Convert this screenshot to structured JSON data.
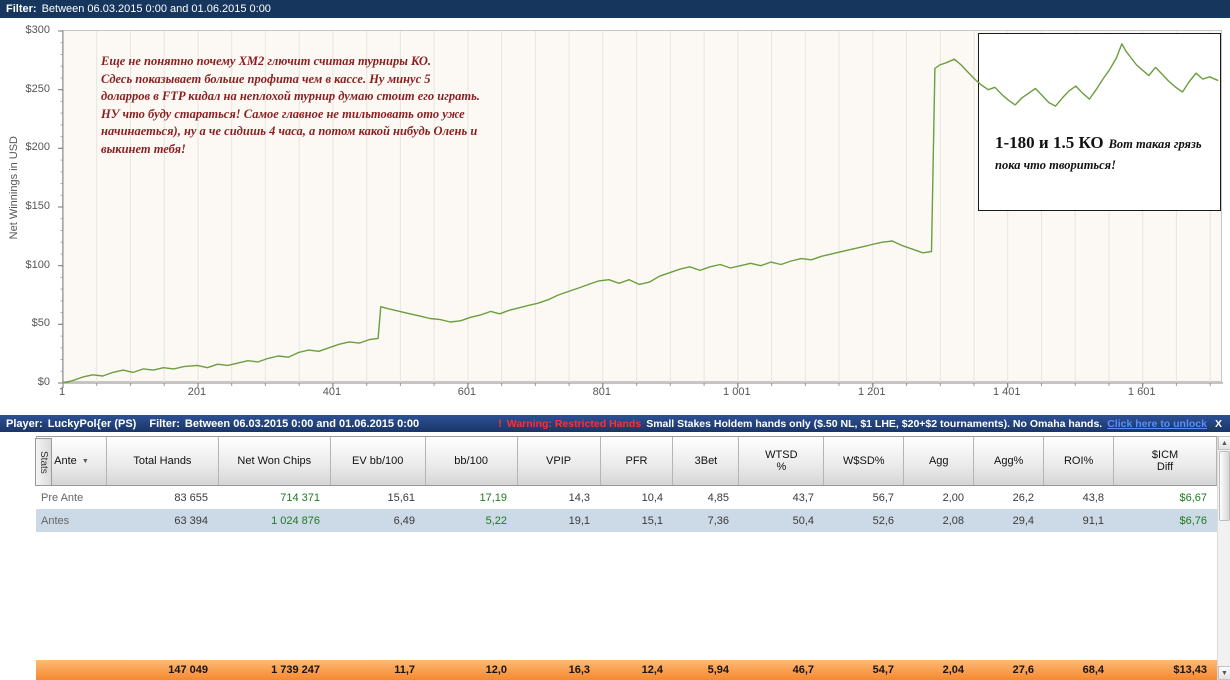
{
  "filter_bar": {
    "label": "Filter:",
    "value": "Between 06.03.2015 0:00 and 01.06.2015 0:00"
  },
  "chart_data": {
    "type": "line",
    "title": "",
    "xlabel": "",
    "ylabel": "Net Winnings in USD",
    "xlim": [
      1,
      1720
    ],
    "ylim": [
      0,
      300
    ],
    "x_tick_values": [
      1,
      201,
      401,
      601,
      801,
      1001,
      1201,
      1401,
      1601
    ],
    "x_tick_labels": [
      "1",
      "201",
      "401",
      "601",
      "801",
      "1 001",
      "1 201",
      "1 401",
      "1 601"
    ],
    "y_tick_values": [
      0,
      50,
      100,
      150,
      200,
      250,
      300
    ],
    "y_tick_labels": [
      "$0",
      "$50",
      "$100",
      "$150",
      "$200",
      "$250",
      "$300"
    ],
    "grid": "vertical",
    "legend": "none",
    "series": [
      {
        "name": "Net Winnings in USD",
        "color": "#6b9e3e",
        "points": [
          [
            1,
            0
          ],
          [
            15,
            2
          ],
          [
            30,
            5
          ],
          [
            45,
            7
          ],
          [
            60,
            6
          ],
          [
            75,
            9
          ],
          [
            90,
            11
          ],
          [
            105,
            9
          ],
          [
            120,
            12
          ],
          [
            135,
            11
          ],
          [
            150,
            13
          ],
          [
            165,
            12
          ],
          [
            180,
            14
          ],
          [
            200,
            15
          ],
          [
            215,
            13
          ],
          [
            230,
            16
          ],
          [
            245,
            15
          ],
          [
            260,
            17
          ],
          [
            275,
            19
          ],
          [
            290,
            18
          ],
          [
            305,
            21
          ],
          [
            320,
            23
          ],
          [
            335,
            22
          ],
          [
            350,
            26
          ],
          [
            365,
            28
          ],
          [
            380,
            27
          ],
          [
            395,
            30
          ],
          [
            410,
            33
          ],
          [
            425,
            35
          ],
          [
            440,
            34
          ],
          [
            455,
            37
          ],
          [
            468,
            38
          ],
          [
            472,
            65
          ],
          [
            485,
            63
          ],
          [
            500,
            61
          ],
          [
            515,
            59
          ],
          [
            530,
            57
          ],
          [
            545,
            55
          ],
          [
            560,
            54
          ],
          [
            575,
            52
          ],
          [
            590,
            53
          ],
          [
            605,
            56
          ],
          [
            620,
            58
          ],
          [
            635,
            61
          ],
          [
            648,
            59
          ],
          [
            662,
            62
          ],
          [
            676,
            64
          ],
          [
            690,
            66
          ],
          [
            705,
            68
          ],
          [
            720,
            71
          ],
          [
            735,
            75
          ],
          [
            750,
            78
          ],
          [
            765,
            81
          ],
          [
            780,
            84
          ],
          [
            795,
            87
          ],
          [
            810,
            88
          ],
          [
            825,
            85
          ],
          [
            840,
            88
          ],
          [
            855,
            84
          ],
          [
            870,
            86
          ],
          [
            885,
            91
          ],
          [
            900,
            94
          ],
          [
            915,
            97
          ],
          [
            930,
            99
          ],
          [
            945,
            96
          ],
          [
            960,
            99
          ],
          [
            975,
            101
          ],
          [
            990,
            98
          ],
          [
            1005,
            100
          ],
          [
            1020,
            102
          ],
          [
            1035,
            100
          ],
          [
            1050,
            103
          ],
          [
            1065,
            101
          ],
          [
            1080,
            104
          ],
          [
            1095,
            106
          ],
          [
            1110,
            105
          ],
          [
            1125,
            108
          ],
          [
            1140,
            110
          ],
          [
            1155,
            112
          ],
          [
            1170,
            114
          ],
          [
            1185,
            116
          ],
          [
            1200,
            118
          ],
          [
            1215,
            120
          ],
          [
            1230,
            121
          ],
          [
            1245,
            117
          ],
          [
            1260,
            114
          ],
          [
            1275,
            111
          ],
          [
            1288,
            112
          ],
          [
            1293,
            268
          ],
          [
            1300,
            271
          ],
          [
            1310,
            273
          ],
          [
            1322,
            276
          ],
          [
            1332,
            271
          ],
          [
            1342,
            265
          ],
          [
            1352,
            259
          ],
          [
            1362,
            254
          ],
          [
            1372,
            250
          ],
          [
            1382,
            252
          ],
          [
            1392,
            246
          ],
          [
            1402,
            241
          ],
          [
            1412,
            237
          ],
          [
            1422,
            243
          ],
          [
            1432,
            247
          ],
          [
            1442,
            251
          ],
          [
            1452,
            245
          ],
          [
            1462,
            239
          ],
          [
            1472,
            236
          ],
          [
            1482,
            243
          ],
          [
            1492,
            249
          ],
          [
            1502,
            253
          ],
          [
            1512,
            247
          ],
          [
            1522,
            242
          ],
          [
            1532,
            250
          ],
          [
            1542,
            259
          ],
          [
            1552,
            267
          ],
          [
            1562,
            277
          ],
          [
            1570,
            289
          ],
          [
            1576,
            283
          ],
          [
            1584,
            277
          ],
          [
            1592,
            271
          ],
          [
            1600,
            267
          ],
          [
            1610,
            262
          ],
          [
            1620,
            269
          ],
          [
            1630,
            263
          ],
          [
            1640,
            257
          ],
          [
            1650,
            252
          ],
          [
            1660,
            248
          ],
          [
            1670,
            257
          ],
          [
            1680,
            264
          ],
          [
            1690,
            259
          ],
          [
            1700,
            261
          ],
          [
            1712,
            258
          ]
        ]
      }
    ],
    "annotations": [
      {
        "id": "note",
        "text": "Еще не понятно почему ХМ2 глючит считая турниры КО.\nСдесь показывает больше профита чем в кассе. Ну  минус 5\nдоларров в FTP кидал на неплохой турнир думаю стоит его играть.\nНУ что буду стараться! Самое главное не тильтовать ото уже\nначинаеться), ну а че сидишь 4 часа, а потом какой нибудь Олень и\nвыкинет тебя!"
      },
      {
        "id": "callout",
        "title": "1-180 и 1.5 КО",
        "text": "Вот такая грязь пока что твориться!"
      }
    ]
  },
  "player_bar": {
    "player_label": "Player:",
    "player_name": "LuckyPol{er (PS)",
    "filter_label": "Filter:",
    "filter_value": "Between 06.03.2015 0:00 and 01.06.2015 0:00",
    "warning_icon": "!",
    "warning_title": "Warning: Restricted Hands",
    "warning_text": "Small Stakes Holdem hands only ($.50 NL, $1 LHE, $20+$2 tournaments).  No Omaha hands.",
    "unlock_link": "Click here to unlock",
    "close_label": "X"
  },
  "table": {
    "tab_label": "Stats",
    "columns": [
      "Ante",
      "Total Hands",
      "Net Won Chips",
      "EV bb/100",
      "bb/100",
      "VPIP",
      "PFR",
      "3Bet",
      "WTSD\n%",
      "W$SD%",
      "Agg",
      "Agg%",
      "ROI%",
      "$ICM\nDiff"
    ],
    "rows": [
      {
        "cells": [
          "Pre Ante",
          "83 655",
          "714 371",
          "15,61",
          "17,19",
          "14,3",
          "10,4",
          "4,85",
          "43,7",
          "56,7",
          "2,00",
          "26,2",
          "43,8",
          "$6,67"
        ],
        "green": [
          2,
          4,
          13
        ],
        "bg": "#ffffff"
      },
      {
        "cells": [
          "Antes",
          "63 394",
          "1 024 876",
          "6,49",
          "5,22",
          "19,1",
          "15,1",
          "7,36",
          "50,4",
          "52,6",
          "2,08",
          "29,4",
          "91,1",
          "$6,76"
        ],
        "green": [
          2,
          4,
          13
        ],
        "bg": "#ccd9e6"
      }
    ],
    "summary": [
      "",
      "147 049",
      "1 739 247",
      "11,7",
      "12,0",
      "16,3",
      "12,4",
      "5,94",
      "46,7",
      "54,7",
      "2,04",
      "27,6",
      "68,4",
      "$13,43"
    ]
  },
  "icons": {
    "scroll_up": "▲",
    "scroll_down": "▼",
    "dropdown": "▼"
  },
  "colors": {
    "bar_navy": "#17365d",
    "line_green": "#6b9e3e",
    "positive_green": "#1f7a1f",
    "summary_orange": "#f6892f",
    "alt_row_blue": "#ccd9e6",
    "warning_red": "#ff2f2f",
    "note_red": "#8b1e1e"
  }
}
